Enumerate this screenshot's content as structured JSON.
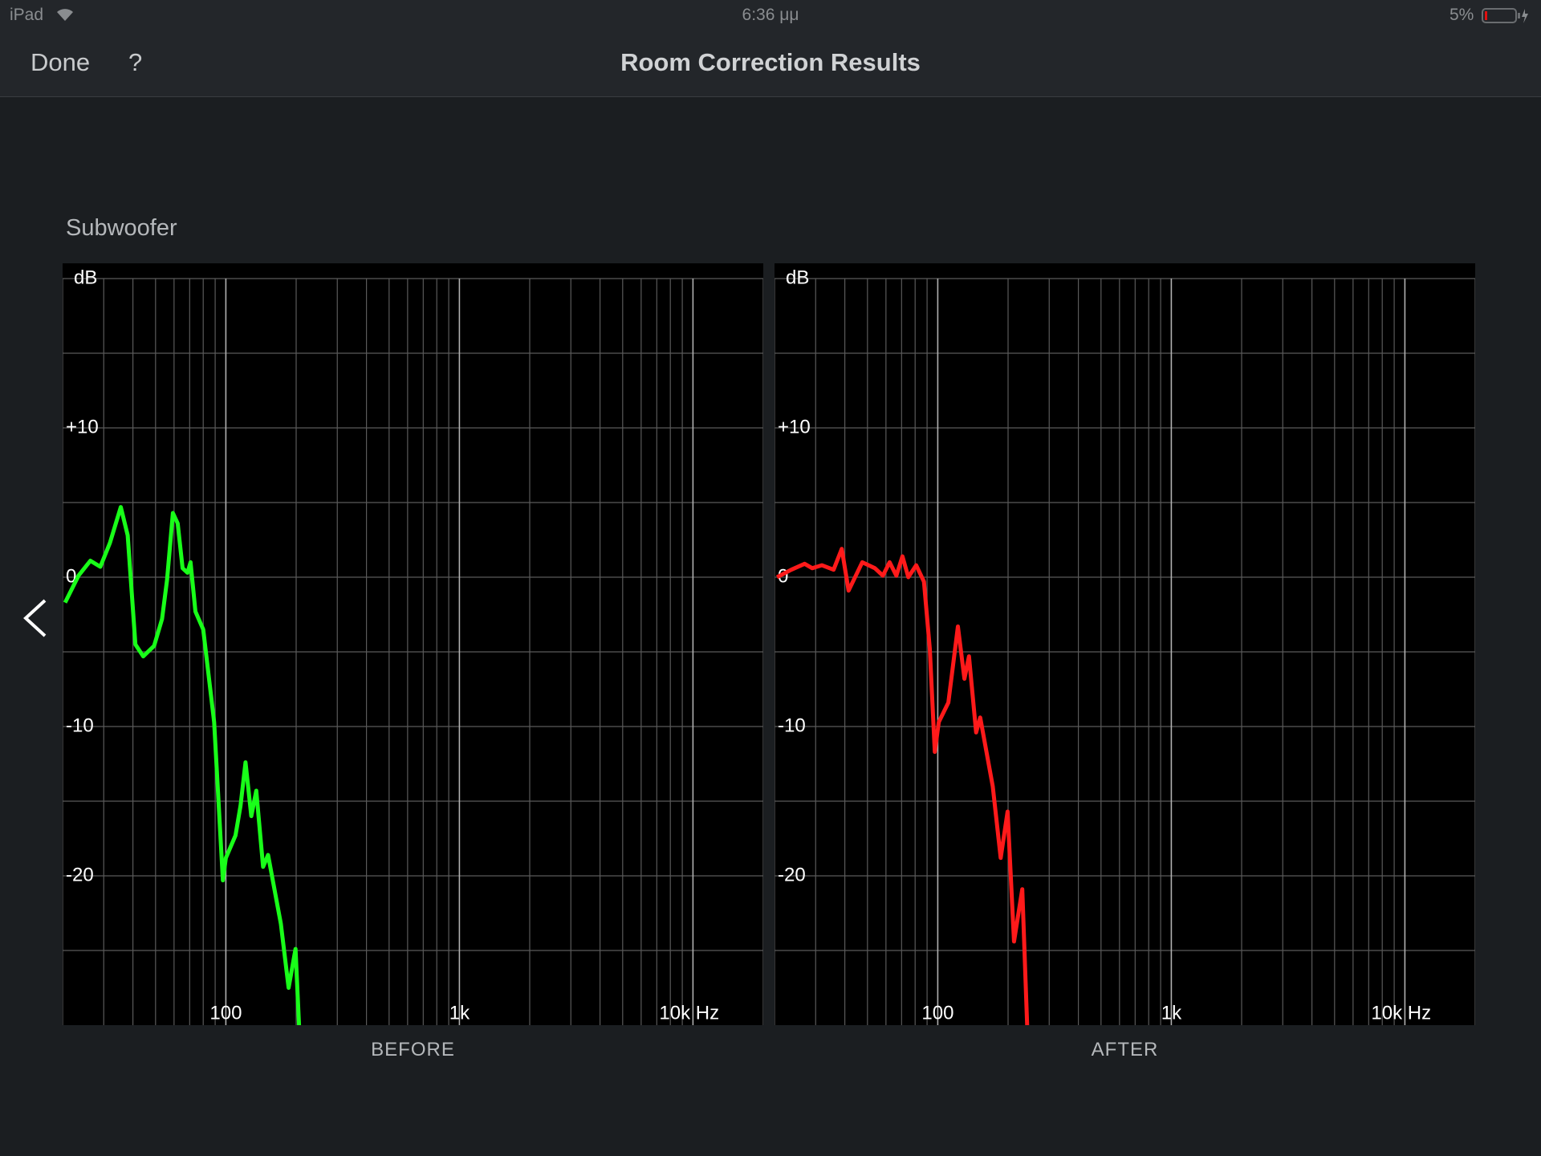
{
  "status_bar": {
    "device": "iPad",
    "time": "6:36 μμ",
    "battery": "5%"
  },
  "nav": {
    "done": "Done",
    "help": "?",
    "title": "Room Correction Results"
  },
  "section": "Subwoofer",
  "chart_data": [
    {
      "type": "line",
      "title": "BEFORE",
      "ylabel": "dB",
      "xscale": "log",
      "color": "#19ff19",
      "xlim": [
        20,
        20000
      ],
      "ylim": [
        -30,
        20
      ],
      "xticks": [
        100,
        {
          "value": 1000,
          "label": "1k"
        },
        {
          "value": 10000,
          "label": "10k Hz"
        }
      ],
      "xgrid": [
        20,
        30,
        40,
        50,
        60,
        70,
        80,
        90,
        200,
        300,
        400,
        500,
        600,
        700,
        800,
        900,
        2000,
        3000,
        4000,
        5000,
        6000,
        7000,
        8000,
        9000,
        20000
      ],
      "yticks": [
        {
          "value": 10,
          "label": "+10"
        },
        0,
        -10,
        -20
      ],
      "ygrid": [
        -25,
        -15,
        -5,
        5,
        15,
        20
      ],
      "x": [
        20.5,
        23.4,
        26.3,
        29.0,
        31.9,
        35.5,
        38.0,
        41.0,
        44.3,
        49.3,
        53.3,
        56.0,
        59.3,
        62.2,
        65.3,
        68.5,
        70.6,
        74.1,
        80.0,
        89.1,
        97.1,
        100,
        110,
        115.6,
        121.4,
        128.5,
        135,
        144.4,
        151.6,
        171.9,
        185.7,
        198.8,
        208.6
      ],
      "values": [
        -1.7,
        0.1,
        1.1,
        0.7,
        2.3,
        4.7,
        2.8,
        -4.5,
        -5.3,
        -4.6,
        -2.8,
        -0.2,
        4.3,
        3.6,
        0.6,
        0.3,
        1.0,
        -2.3,
        -3.5,
        -9.7,
        -20.3,
        -18.8,
        -17.3,
        -15.3,
        -12.4,
        -16.0,
        -14.3,
        -19.4,
        -18.6,
        -23.2,
        -27.5,
        -24.9,
        -32
      ]
    },
    {
      "type": "line",
      "title": "AFTER",
      "ylabel": "dB",
      "xscale": "log",
      "color": "#ff1a1a",
      "xlim": [
        20,
        20000
      ],
      "ylim": [
        -30,
        20
      ],
      "xticks": [
        100,
        {
          "value": 1000,
          "label": "1k"
        },
        {
          "value": 10000,
          "label": "10k Hz"
        }
      ],
      "xgrid": [
        20,
        30,
        40,
        50,
        60,
        70,
        80,
        90,
        200,
        300,
        400,
        500,
        600,
        700,
        800,
        900,
        2000,
        3000,
        4000,
        5000,
        6000,
        7000,
        8000,
        9000,
        20000
      ],
      "yticks": [
        {
          "value": 10,
          "label": "+10"
        },
        0,
        -10,
        -20
      ],
      "ygrid": [
        -25,
        -15,
        -5,
        5,
        15,
        20
      ],
      "x": [
        20.5,
        23.6,
        26.9,
        29.0,
        31.9,
        35.8,
        38.8,
        41.5,
        47.5,
        53.8,
        58.2,
        62.2,
        66.5,
        70.6,
        74.8,
        80.8,
        87.3,
        92.5,
        97.1,
        101,
        111,
        122,
        130,
        136,
        146,
        152,
        172,
        186,
        199,
        212,
        230,
        244
      ],
      "values": [
        0,
        0.5,
        0.9,
        0.6,
        0.8,
        0.5,
        1.9,
        -0.9,
        1.0,
        0.6,
        0.1,
        1.0,
        0.1,
        1.4,
        0,
        0.8,
        -0.3,
        -4.8,
        -11.7,
        -9.7,
        -8.4,
        -3.3,
        -6.8,
        -5.3,
        -10.4,
        -9.4,
        -14.0,
        -18.8,
        -15.7,
        -24.4,
        -20.9,
        -32
      ]
    }
  ]
}
